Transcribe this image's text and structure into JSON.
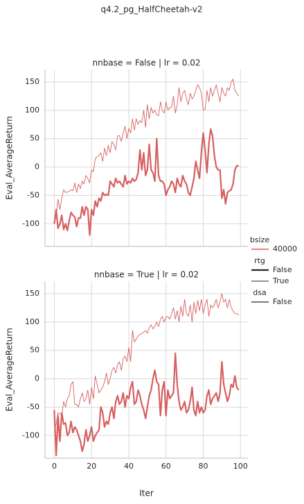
{
  "title": "q4.2_pg_HalfCheetah-v2",
  "legend": {
    "groups": [
      {
        "title": "bsize",
        "labels": [
          "40000"
        ]
      },
      {
        "title": "rtg",
        "labels": [
          "False",
          "True"
        ]
      },
      {
        "title": "dsa",
        "labels": [
          "False"
        ]
      }
    ]
  },
  "chart_data": [
    {
      "type": "line",
      "title": "nnbase = False | lr = 0.02",
      "ylabel": "Eval_AverageReturn",
      "xlim": [
        -5,
        104
      ],
      "xticks": [
        0,
        20,
        40,
        60,
        80,
        100
      ],
      "ylim": [
        -140,
        172
      ],
      "yticks": [
        -100,
        -50,
        0,
        50,
        100,
        150
      ],
      "grid": true,
      "x": [
        0,
        1,
        2,
        3,
        4,
        5,
        6,
        7,
        8,
        9,
        10,
        11,
        12,
        13,
        14,
        15,
        16,
        17,
        18,
        19,
        20,
        21,
        22,
        23,
        24,
        25,
        26,
        27,
        28,
        29,
        30,
        31,
        32,
        33,
        34,
        35,
        36,
        37,
        38,
        39,
        40,
        41,
        42,
        43,
        44,
        45,
        46,
        47,
        48,
        49,
        50,
        51,
        52,
        53,
        54,
        55,
        56,
        57,
        58,
        59,
        60,
        61,
        62,
        63,
        64,
        65,
        66,
        67,
        68,
        69,
        70,
        71,
        72,
        73,
        74,
        75,
        76,
        77,
        78,
        79,
        80,
        81,
        82,
        83,
        84,
        85,
        86,
        87,
        88,
        89,
        90,
        91,
        92,
        93,
        94,
        95,
        96,
        97,
        98,
        99
      ],
      "series": [
        {
          "color": "#d65f5f",
          "linewidth": 2.2,
          "values": [
            -100,
            -75,
            -108,
            -100,
            -85,
            -110,
            -100,
            -112,
            -95,
            -80,
            -85,
            -88,
            -105,
            -90,
            -90,
            -70,
            -85,
            -70,
            -75,
            -120,
            -75,
            -85,
            -60,
            -70,
            -55,
            -60,
            -45,
            -50,
            -48,
            -50,
            -25,
            -30,
            -35,
            -20,
            -28,
            -25,
            -30,
            -35,
            -15,
            -30,
            -25,
            -28,
            -20,
            -25,
            -22,
            -10,
            30,
            -5,
            25,
            -15,
            -5,
            40,
            -5,
            -10,
            -25,
            50,
            -15,
            -25,
            -25,
            -30,
            -50,
            -40,
            -35,
            -25,
            -30,
            -45,
            -20,
            -30,
            -35,
            -15,
            -25,
            -30,
            -45,
            -50,
            -35,
            -20,
            10,
            -5,
            -20,
            25,
            60,
            30,
            -10,
            40,
            67,
            55,
            20,
            0,
            -5,
            -5,
            -55,
            -40,
            -65,
            -45,
            -42,
            -40,
            -30,
            -5,
            2,
            2
          ]
        },
        {
          "color": "#d65f5f",
          "linewidth": 0.9,
          "values": [
            -100,
            -85,
            -57,
            -75,
            -55,
            -40,
            -45,
            -44,
            -43,
            -40,
            -42,
            -28,
            -45,
            -30,
            -38,
            -25,
            -30,
            -15,
            -20,
            -28,
            -5,
            -8,
            15,
            18,
            20,
            25,
            10,
            33,
            20,
            38,
            25,
            45,
            40,
            30,
            55,
            55,
            45,
            60,
            72,
            50,
            68,
            60,
            85,
            65,
            85,
            75,
            82,
            78,
            100,
            70,
            110,
            85,
            105,
            95,
            100,
            92,
            90,
            115,
            100,
            95,
            115,
            100,
            105,
            105,
            125,
            95,
            110,
            140,
            115,
            130,
            135,
            120,
            110,
            130,
            120,
            125,
            135,
            145,
            140,
            130,
            100,
            102,
            135,
            115,
            140,
            125,
            135,
            145,
            130,
            115,
            140,
            130,
            125,
            140,
            135,
            150,
            155,
            135,
            130,
            125
          ]
        }
      ]
    },
    {
      "type": "line",
      "title": "nnbase = True | lr = 0.02",
      "ylabel": "Eval_AverageReturn",
      "xlabel": "Iter",
      "xlim": [
        -5,
        104
      ],
      "xticks": [
        0,
        20,
        40,
        60,
        80,
        100
      ],
      "ylim": [
        -140,
        172
      ],
      "yticks": [
        -100,
        -50,
        0,
        50,
        100,
        150
      ],
      "grid": true,
      "x": [
        0,
        1,
        2,
        3,
        4,
        5,
        6,
        7,
        8,
        9,
        10,
        11,
        12,
        13,
        14,
        15,
        16,
        17,
        18,
        19,
        20,
        21,
        22,
        23,
        24,
        25,
        26,
        27,
        28,
        29,
        30,
        31,
        32,
        33,
        34,
        35,
        36,
        37,
        38,
        39,
        40,
        41,
        42,
        43,
        44,
        45,
        46,
        47,
        48,
        49,
        50,
        51,
        52,
        53,
        54,
        55,
        56,
        57,
        58,
        59,
        60,
        61,
        62,
        63,
        64,
        65,
        66,
        67,
        68,
        69,
        70,
        71,
        72,
        73,
        74,
        75,
        76,
        77,
        78,
        79,
        80,
        81,
        82,
        83,
        84,
        85,
        86,
        87,
        88,
        89,
        90,
        91,
        92,
        93,
        94,
        95,
        96,
        97,
        98,
        99
      ],
      "series": [
        {
          "color": "#d65f5f",
          "linewidth": 2.2,
          "values": [
            -55,
            -135,
            -65,
            -110,
            -60,
            -80,
            -78,
            -100,
            -95,
            -75,
            -95,
            -85,
            -90,
            -100,
            -110,
            -128,
            -115,
            -90,
            -110,
            -100,
            -85,
            -110,
            -100,
            -95,
            -90,
            -50,
            -60,
            -85,
            -75,
            -80,
            -60,
            -50,
            -70,
            -40,
            -30,
            -45,
            -40,
            -25,
            -50,
            -30,
            -35,
            -15,
            -5,
            -45,
            -40,
            -20,
            -30,
            -45,
            -55,
            -70,
            -50,
            -30,
            -20,
            0,
            15,
            -5,
            -10,
            -65,
            -20,
            -5,
            -65,
            -20,
            -35,
            -30,
            -25,
            45,
            -10,
            -40,
            -55,
            -50,
            -40,
            -60,
            -55,
            -40,
            -15,
            -55,
            -65,
            -40,
            -60,
            -50,
            -60,
            -55,
            -30,
            -20,
            -45,
            -35,
            -30,
            -25,
            -40,
            -25,
            30,
            -10,
            -25,
            -40,
            -30,
            -10,
            -15,
            5,
            -15,
            -20
          ]
        },
        {
          "color": "#d65f5f",
          "linewidth": 0.9,
          "values": [
            -90,
            -80,
            -60,
            -62,
            -65,
            -40,
            -50,
            -35,
            -30,
            -10,
            -5,
            -45,
            -45,
            -50,
            -35,
            -25,
            -40,
            -35,
            -20,
            -45,
            -15,
            -35,
            5,
            -10,
            -25,
            -20,
            -15,
            -5,
            10,
            -10,
            0,
            15,
            20,
            10,
            25,
            30,
            15,
            35,
            40,
            30,
            55,
            30,
            85,
            65,
            70,
            75,
            78,
            80,
            82,
            85,
            80,
            90,
            95,
            88,
            92,
            100,
            92,
            105,
            110,
            100,
            108,
            110,
            105,
            115,
            125,
            105,
            120,
            100,
            128,
            110,
            140,
            115,
            110,
            130,
            100,
            135,
            115,
            138,
            120,
            140,
            115,
            130,
            140,
            110,
            130,
            125,
            130,
            140,
            125,
            135,
            150,
            135,
            140,
            125,
            140,
            125,
            120,
            115,
            115,
            112
          ]
        }
      ]
    }
  ]
}
